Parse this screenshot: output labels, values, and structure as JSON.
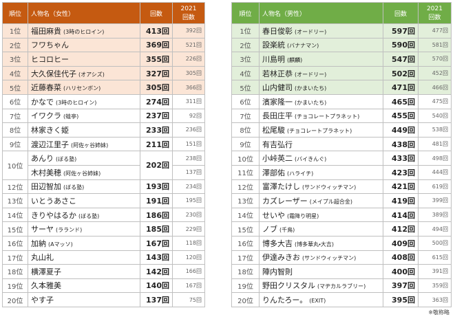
{
  "left": {
    "header": {
      "rank": "順位",
      "name": "人物名（女性）",
      "count": "回数",
      "prev_year": "2021",
      "prev_label": "回数"
    },
    "rows": [
      {
        "rank": "1位",
        "name": "福田麻貴",
        "note": "(3時のヒロイン)",
        "count": "413回",
        "prev": "392回"
      },
      {
        "rank": "2位",
        "name": "フワちゃん",
        "count": "369回",
        "prev": "521回"
      },
      {
        "rank": "3位",
        "name": "ヒコロヒー",
        "count": "355回",
        "prev": "226回"
      },
      {
        "rank": "4位",
        "name": "大久保佳代子",
        "note": "(オアシズ)",
        "count": "327回",
        "prev": "305回"
      },
      {
        "rank": "5位",
        "name": "近藤春菜",
        "note": "(ハリセンボン)",
        "count": "305回",
        "prev": "366回"
      },
      {
        "rank": "6位",
        "name": "かなで",
        "note": "(3時のヒロイン)",
        "count": "274回",
        "prev": "311回"
      },
      {
        "rank": "7位",
        "name": "イワクラ",
        "note": "(蛙亭)",
        "count": "237回",
        "prev": "92回"
      },
      {
        "rank": "8位",
        "name": "林家きく姫",
        "count": "233回",
        "prev": "236回"
      },
      {
        "rank": "9位",
        "name": "渡辺江里子",
        "note": "(阿佐ヶ谷姉妹)",
        "count": "211回",
        "prev": "151回"
      },
      {
        "rank": "10位",
        "name": "あんり",
        "note": "(ぼる塾)",
        "count": "202回",
        "prev": "238回"
      },
      {
        "name": "木村美穂",
        "note": "(阿佐ヶ谷姉妹)",
        "prev": "137回"
      },
      {
        "rank": "12位",
        "name": "田辺智加",
        "note": "(ぼる塾)",
        "count": "193回",
        "prev": "234回"
      },
      {
        "rank": "13位",
        "name": "いとうあさこ",
        "count": "191回",
        "prev": "195回"
      },
      {
        "rank": "14位",
        "name": "きりやはるか",
        "note": "(ぼる塾)",
        "count": "186回",
        "prev": "230回"
      },
      {
        "rank": "15位",
        "name": "サーヤ",
        "note": "(ラランド)",
        "count": "185回",
        "prev": "229回"
      },
      {
        "rank": "16位",
        "name": "加納",
        "note": "(Aマッソ)",
        "count": "167回",
        "prev": "118回"
      },
      {
        "rank": "17位",
        "name": "丸山礼",
        "count": "143回",
        "prev": "120回"
      },
      {
        "rank": "18位",
        "name": "横澤夏子",
        "count": "142回",
        "prev": "166回"
      },
      {
        "rank": "19位",
        "name": "久本雅美",
        "count": "140回",
        "prev": "167回"
      },
      {
        "rank": "20位",
        "name": "やす子",
        "count": "137回",
        "prev": "75回"
      }
    ]
  },
  "right": {
    "header": {
      "rank": "順位",
      "name": "人物名（男性）",
      "count": "回数",
      "prev_year": "2021",
      "prev_label": "回数"
    },
    "rows": [
      {
        "rank": "1位",
        "name": "春日俊彰",
        "note": "(オードリー)",
        "count": "597回",
        "prev": "477回"
      },
      {
        "rank": "2位",
        "name": "設楽統",
        "note": "(バナナマン)",
        "count": "590回",
        "prev": "581回"
      },
      {
        "rank": "3位",
        "name": "川島明",
        "note": "(麒麟)",
        "count": "547回",
        "prev": "570回"
      },
      {
        "rank": "4位",
        "name": "若林正恭",
        "note": "(オードリー)",
        "count": "502回",
        "prev": "452回"
      },
      {
        "rank": "5位",
        "name": "山内健司",
        "note": "(かまいたち)",
        "count": "471回",
        "prev": "466回"
      },
      {
        "rank": "6位",
        "name": "濱家隆一",
        "note": "(かまいたち)",
        "count": "465回",
        "prev": "475回"
      },
      {
        "rank": "7位",
        "name": "長田庄平",
        "note": "(チョコレートプラネット)",
        "count": "455回",
        "prev": "540回"
      },
      {
        "rank": "8位",
        "name": "松尾駿",
        "note": "(チョコレートプラネット)",
        "count": "449回",
        "prev": "538回"
      },
      {
        "rank": "9位",
        "name": "有吉弘行",
        "count": "438回",
        "prev": "481回"
      },
      {
        "rank": "10位",
        "name": "小峠英二",
        "note": "(バイきんぐ)",
        "count": "433回",
        "prev": "498回"
      },
      {
        "rank": "11位",
        "name": "澤部佑",
        "note": "(ハライチ)",
        "count": "423回",
        "prev": "444回"
      },
      {
        "rank": "12位",
        "name": "富澤たけし",
        "note": "(サンドウィッチマン)",
        "count": "421回",
        "prev": "619回"
      },
      {
        "rank": "13位",
        "name": "カズレーザー",
        "note": "(メイプル超合金)",
        "count": "419回",
        "prev": "399回"
      },
      {
        "rank": "14位",
        "name": "せいや",
        "note": "(霜降り明星)",
        "count": "414回",
        "prev": "389回"
      },
      {
        "rank": "15位",
        "name": "ノブ",
        "note": "(千鳥)",
        "count": "412回",
        "prev": "494回"
      },
      {
        "rank": "16位",
        "name": "博多大吉",
        "note": "(博多華丸・大吉)",
        "count": "409回",
        "prev": "500回"
      },
      {
        "rank": "17位",
        "name": "伊達みきお",
        "note": "(サンドウィッチマン)",
        "count": "408回",
        "prev": "615回"
      },
      {
        "rank": "18位",
        "name": "陣内智則",
        "count": "400回",
        "prev": "391回"
      },
      {
        "rank": "19位",
        "name": "野田クリスタル",
        "note": "(マヂカルラブリー)",
        "count": "397回",
        "prev": "359回"
      },
      {
        "rank": "20位",
        "name": "りんたろー。",
        "note": "(EXIT)",
        "count": "395回",
        "prev": "363回"
      }
    ]
  },
  "footnote": "※敬称略"
}
